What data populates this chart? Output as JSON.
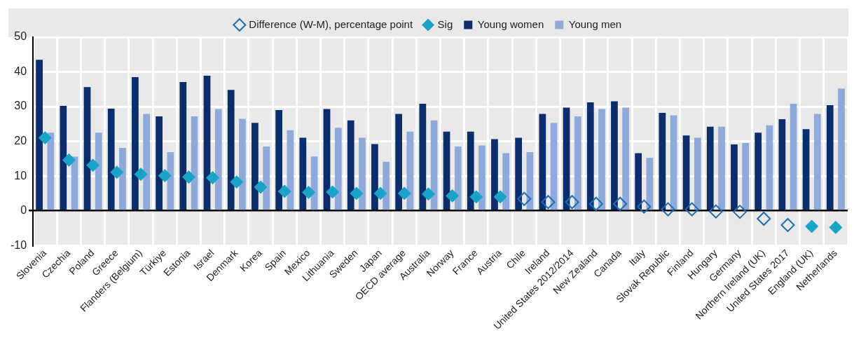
{
  "chart_data": {
    "type": "bar",
    "categories": [
      "Slovenia",
      "Czechia",
      "Poland",
      "Greece",
      "Flanders (Belgium)",
      "Türkiye",
      "Estonia",
      "Israel",
      "Denmark",
      "Korea",
      "Spain",
      "Mexico",
      "Lithuania",
      "Sweden",
      "Japan",
      "OECD average",
      "Australia",
      "Norway",
      "France",
      "Austria",
      "Chile",
      "Ireland",
      "United States 2012/2014",
      "New Zealand",
      "Canada",
      "Italy",
      "Slovak Republic",
      "Finland",
      "Hungary",
      "Germany",
      "Northern Ireland (UK)",
      "United States 2017",
      "England (UK)",
      "Netherlands"
    ],
    "series": [
      {
        "name": "Young women",
        "color": "#0b2d6b",
        "values": [
          43.5,
          30.2,
          35.6,
          29.4,
          38.5,
          27.2,
          37.1,
          38.9,
          34.8,
          25.3,
          29,
          21,
          29.3,
          26,
          19.2,
          27.9,
          30.8,
          22.8,
          22.8,
          20.6,
          21,
          27.9,
          29.7,
          31.2,
          31.5,
          16.6,
          28.2,
          21.7,
          24.2,
          19.1,
          22.5,
          26.4,
          23.5,
          30.4
        ]
      },
      {
        "name": "Young men",
        "color": "#8eaadb",
        "values": [
          22.5,
          15.6,
          22.5,
          18.1,
          27.9,
          16.9,
          27.2,
          29.3,
          26.5,
          18.5,
          23.2,
          15.6,
          23.9,
          21,
          14.1,
          22.8,
          26,
          18.5,
          18.8,
          16.6,
          16.9,
          25.3,
          27.2,
          29.3,
          29.7,
          15.2,
          27.5,
          21,
          24.2,
          19.5,
          24.6,
          30.8,
          27.9,
          35.2
        ]
      },
      {
        "name": "Difference (W-M), percentage point",
        "type": "scatter",
        "color": "#1f6db0",
        "values": [
          null,
          null,
          null,
          null,
          null,
          null,
          null,
          null,
          null,
          null,
          null,
          null,
          null,
          null,
          null,
          null,
          null,
          null,
          null,
          null,
          3.4,
          2.5,
          2.5,
          2,
          2,
          1.2,
          0.4,
          0.4,
          -0.2,
          -0.3,
          -2.3,
          -4.1,
          null,
          null
        ]
      },
      {
        "name": "Sig",
        "type": "scatter",
        "color": "#1aa3c8",
        "values": [
          21,
          14.6,
          13.1,
          11.1,
          10.5,
          10.1,
          9.7,
          9.5,
          8.3,
          6.8,
          5.6,
          5.3,
          5.4,
          5,
          5,
          5,
          4.8,
          4.3,
          4,
          4,
          null,
          null,
          null,
          null,
          null,
          null,
          null,
          null,
          null,
          null,
          null,
          null,
          -4.5,
          -4.8
        ]
      }
    ],
    "ylim": [
      -10,
      50
    ],
    "yticks": [
      -10,
      0,
      10,
      20,
      30,
      40,
      50
    ],
    "grid": true,
    "legend": "top",
    "marker": "diamond"
  }
}
